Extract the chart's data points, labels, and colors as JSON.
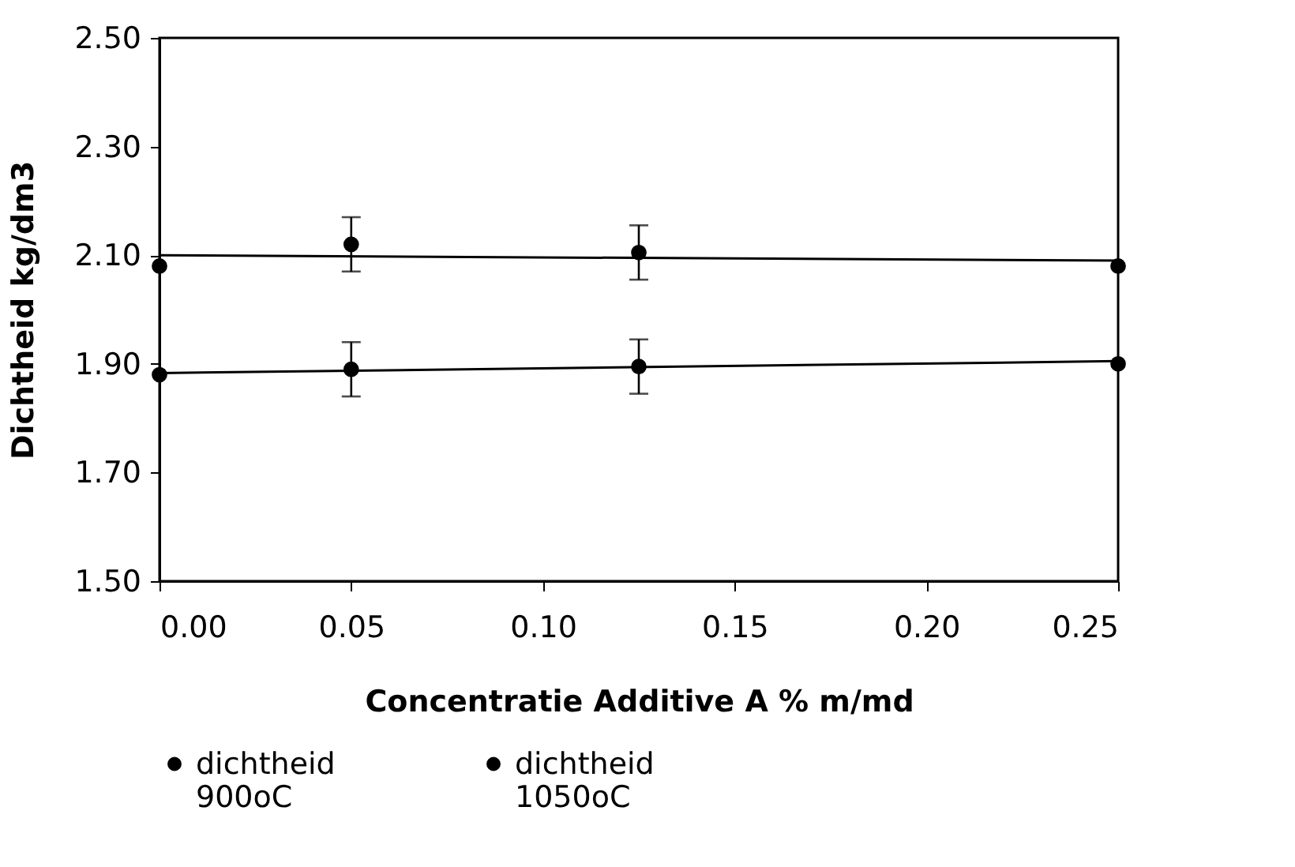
{
  "chart_data": {
    "type": "scatter",
    "xlabel": "Concentratie Additive A % m/md",
    "ylabel": "Dichtheid kg/dm3",
    "xlim": [
      0,
      0.25
    ],
    "xticks": [
      {
        "value": 0,
        "label": "0.00"
      },
      0.05,
      {
        "value": 0.1,
        "label": "0.10"
      },
      0.15,
      {
        "value": 0.2,
        "label": "0.20"
      },
      0.25
    ],
    "ylim": [
      1.5,
      2.5
    ],
    "yticks": [
      {
        "value": 1.5,
        "label": "1.50"
      },
      {
        "value": 1.7,
        "label": "1.70"
      },
      {
        "value": 1.9,
        "label": "1.90"
      },
      {
        "value": 2.1,
        "label": "2.10"
      },
      {
        "value": 2.3,
        "label": "2.30"
      },
      {
        "value": 2.5,
        "label": "2.50"
      }
    ],
    "grid": false,
    "legend": "bottom",
    "series": [
      {
        "name": "dichtheid 900oC",
        "color": "#000000",
        "marker": "circle",
        "x": [
          0,
          0.05,
          0.125,
          0.25
        ],
        "values": [
          1.88,
          1.89,
          1.895,
          1.9
        ],
        "errors": [
          null,
          0.05,
          0.05,
          null
        ]
      },
      {
        "name": "dichtheid 1050oC",
        "color": "#000000",
        "marker": "circle",
        "x": [
          0,
          0.05,
          0.125,
          0.25
        ],
        "values": [
          2.08,
          2.12,
          2.105,
          2.08
        ],
        "errors": [
          null,
          0.05,
          0.05,
          null
        ]
      },
      {
        "type": "line",
        "color": "#000000",
        "marker": "none",
        "x": [
          0,
          0.25
        ],
        "values": [
          1.883,
          1.905
        ]
      },
      {
        "type": "line",
        "color": "#000000",
        "marker": "none",
        "x": [
          0,
          0.25
        ],
        "values": [
          2.1,
          2.09
        ]
      }
    ]
  }
}
